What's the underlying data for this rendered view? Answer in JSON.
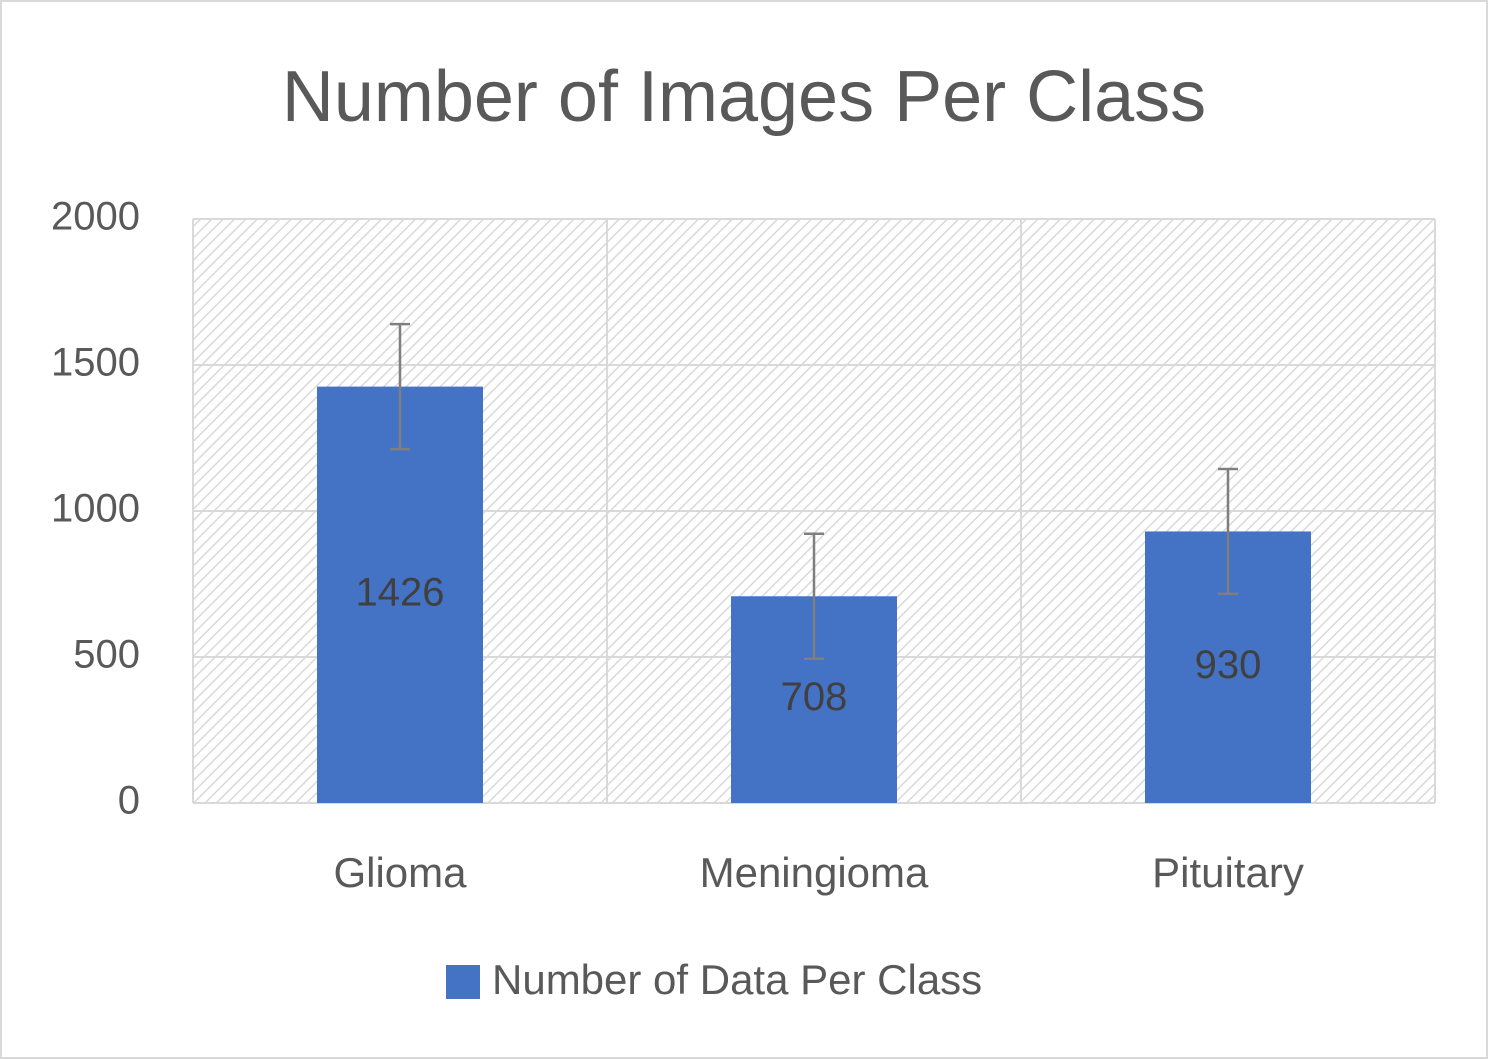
{
  "chart_data": {
    "type": "bar",
    "title": "Number of Images Per Class",
    "categories": [
      "Glioma",
      "Meningioma",
      "Pituitary"
    ],
    "series": [
      {
        "name": "Number of Data Per Class",
        "color": "#4472c4",
        "values": [
          1426,
          708,
          930
        ],
        "errors": [
          214,
          214,
          214
        ]
      }
    ],
    "ylim": [
      0,
      2000
    ],
    "yticks": [
      0,
      500,
      1000,
      1500,
      2000
    ],
    "grid": true,
    "legend": "bottom"
  }
}
